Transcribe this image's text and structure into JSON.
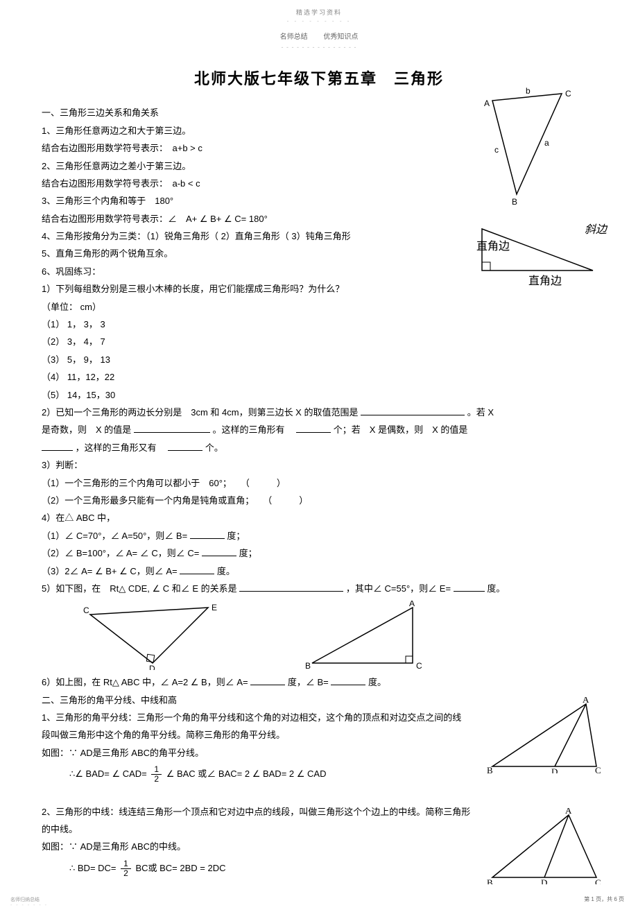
{
  "header": {
    "top_small": "精选学习资料",
    "sub_left": "名师总结",
    "sub_right": "优秀知识点"
  },
  "title": "北师大版七年级下第五章　三角形",
  "sec1": {
    "heading": "一、三角形三边关系和角关系",
    "p1": "1、三角形任意两边之和大于第三边。",
    "p2": "结合右边图形用数学符号表示：　a+b > c",
    "p3": "2、三角形任意两边之差小于第三边。",
    "p4": "结合右边图形用数学符号表示：　a-b < c",
    "p5": "3、三角形三个内角和等于　180°",
    "p6": "结合右边图形用数学符号表示：∠　A+ ∠ B+ ∠ C= 180°",
    "p7": "4、三角形按角分为三类：（1）锐角三角形（ 2）直角三角形（ 3）钝角三角形",
    "p8": "5、直角三角形的两个锐角互余。",
    "p9": "6、巩固练习：",
    "ex1_q": "1）下列每组数分别是三根小木棒的长度，用它们能摆成三角形吗？为什么？",
    "ex1_unit": "（单位： cm）",
    "ex1_1": "（1） 1， 3， 3",
    "ex1_2": "（2） 3， 4， 7",
    "ex1_3": "（3） 5， 9， 13",
    "ex1_4": "（4） 11，12，22",
    "ex1_5": "（5） 14，15，30",
    "ex2_a": "2）已知一个三角形的两边长分别是　3cm 和 4cm，则第三边长  X 的取值范围是 ",
    "ex2_b": "。若 X",
    "ex2_c": "是奇数，则　X  的值是 ",
    "ex2_d": "。这样的三角形有　",
    "ex2_e": "个；若　X  是偶数，则　X  的值是",
    "ex2_f": "，这样的三角形又有　",
    "ex2_g": "个。",
    "ex3": "3）判断：",
    "ex3_1": "（1）一个三角形的三个内角可以都小于　60°；　　（　　　）",
    "ex3_2": "（2）一个三角形最多只能有一个内角是钝角或直角；　　（　　　）",
    "ex4": "4）在△ ABC 中，",
    "ex4_1a": "（1）∠ C=70°，∠ A=50°，则∠ B= ",
    "ex4_1b": "度；",
    "ex4_2a": "（2）∠ B=100°，∠ A= ∠ C，则∠ C= ",
    "ex4_2b": "度；",
    "ex4_3a": "（3）2∠ A= ∠ B+ ∠ C，则∠ A= ",
    "ex4_3b": "度。",
    "ex5_a": "5）如下图，在　Rt△ CDE, ∠ C 和∠ E 的关系是 ",
    "ex5_b": "，其中∠ C=55°，则∠ E=",
    "ex5_c": "度。",
    "ex6_a": "6）如上图，在  Rt△ ABC 中，∠ A=2 ∠ B，则∠ A= ",
    "ex6_b": "度，∠ B= ",
    "ex6_c": "度。"
  },
  "sec2": {
    "heading": "二、三角形的角平分线、中线和高",
    "p1": "1、三角形的角平分线：三角形一个角的角平分线和这个角的对边相交，这个角的顶点和对边交点之间的线",
    "p1b": "段叫做三角形中这个角的角平分线。简称三角形的角平分线。",
    "p2": "如图：∵ AD是三角形  ABC的角平分线。",
    "f1a": "∴∠ BAD= ∠ CAD= ",
    "f1b": " ∠ BAC 或∠ BAC=  2 ∠ BAD=  2 ∠ CAD",
    "p3": "2、三角形的中线：线连结三角形一个顶点和它对边中点的线段，叫做三角形这个个边上的中线。简称三角形",
    "p3b": "的中线。",
    "p4": "如图：∵ AD是三角形  ABC的中线。",
    "f2a": "∴ BD= DC= ",
    "f2b": " BC或 BC=  2BD = 2DC"
  },
  "triangle1": {
    "labels": {
      "A": "A",
      "B": "B",
      "C": "C",
      "a": "a",
      "b": "b",
      "c": "c"
    }
  },
  "triangle2": {
    "labels": {
      "side": "直角边",
      "side2": "直角边",
      "hyp": "斜边"
    }
  },
  "triangle3": {
    "labels": {
      "C": "C",
      "D": "D",
      "E": "E"
    }
  },
  "triangle4": {
    "labels": {
      "A": "A",
      "B": "B",
      "C": "C"
    }
  },
  "triangle5": {
    "labels": {
      "A": "A",
      "B": "B",
      "C": "C",
      "D": "D"
    }
  },
  "footer": {
    "left": "名师归纳总结",
    "right": "第 1 页，共 6 页"
  },
  "blanks": {
    "w_long": 150,
    "w_med": 110,
    "w_short": 50,
    "w_tiny": 45
  }
}
